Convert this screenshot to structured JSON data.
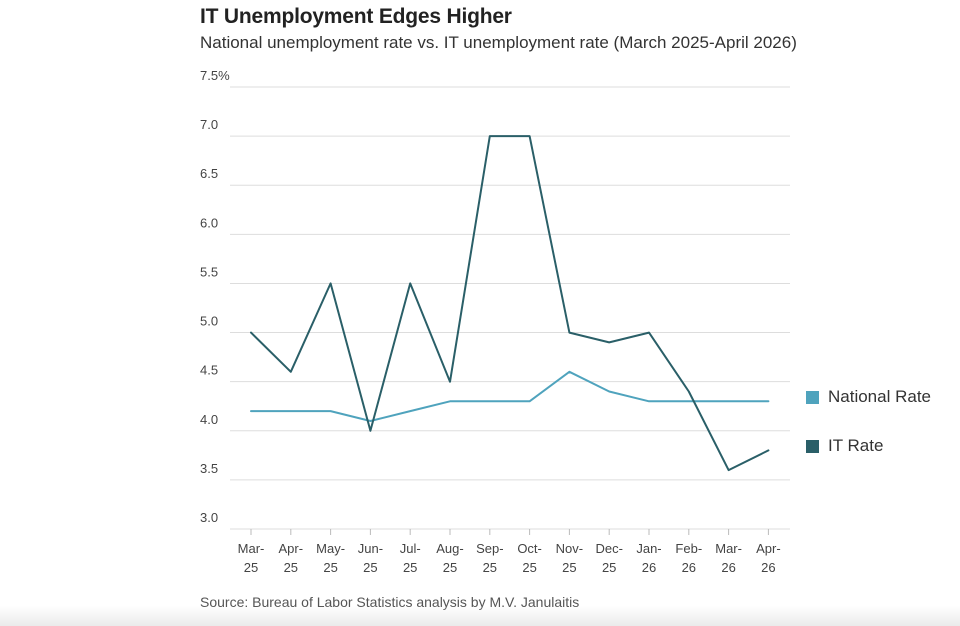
{
  "header": {
    "title": "IT Unemployment Edges Higher",
    "subtitle": "National unemployment rate vs. IT unemployment rate (March 2025-April 2026)"
  },
  "footer": {
    "source": "Source: Bureau of Labor Statistics analysis by M.V. Janulaitis"
  },
  "colors": {
    "national": "#4fa3bd",
    "it": "#2a5f68",
    "grid": "#dddddd",
    "axis_text": "#444444"
  },
  "chart_data": {
    "type": "line",
    "x": [
      [
        "Mar-",
        "25"
      ],
      [
        "Apr-",
        "25"
      ],
      [
        "May-",
        "25"
      ],
      [
        "Jun-",
        "25"
      ],
      [
        "Jul-",
        "25"
      ],
      [
        "Aug-",
        "25"
      ],
      [
        "Sep-",
        "25"
      ],
      [
        "Oct-",
        "25"
      ],
      [
        "Nov-",
        "25"
      ],
      [
        "Dec-",
        "25"
      ],
      [
        "Jan-",
        "26"
      ],
      [
        "Feb-",
        "26"
      ],
      [
        "Mar-",
        "26"
      ],
      [
        "Apr-",
        "26"
      ]
    ],
    "series": [
      {
        "name": "National Rate",
        "color": "#4fa3bd",
        "values": [
          4.2,
          4.2,
          4.2,
          4.1,
          4.2,
          4.3,
          4.3,
          4.3,
          4.6,
          4.4,
          4.3,
          4.3,
          4.3,
          4.3
        ]
      },
      {
        "name": "IT Rate",
        "color": "#2a5f68",
        "values": [
          5.0,
          4.6,
          5.5,
          4.0,
          5.5,
          4.5,
          7.0,
          7.0,
          5.0,
          4.9,
          5.0,
          4.4,
          3.6,
          3.8
        ]
      }
    ],
    "ylim": [
      3.0,
      7.5
    ],
    "yticks": [
      "3.0",
      "3.5",
      "4.0",
      "4.5",
      "5.0",
      "5.5",
      "6.0",
      "6.5",
      "7.0",
      "7.5%"
    ],
    "ytick_values": [
      3.0,
      3.5,
      4.0,
      4.5,
      5.0,
      5.5,
      6.0,
      6.5,
      7.0,
      7.5
    ],
    "xlabel": "",
    "ylabel": "",
    "grid": true,
    "legend_position": "right"
  }
}
